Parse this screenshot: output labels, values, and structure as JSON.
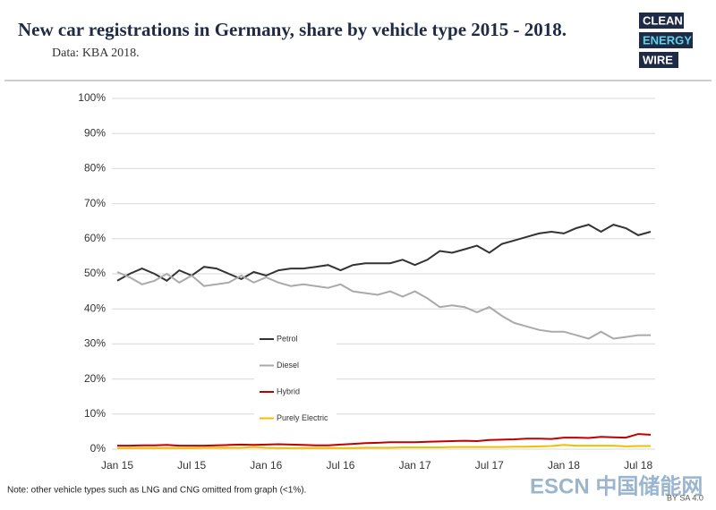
{
  "header": {
    "title": "New car registrations in Germany, share by vehicle type 2015 - 2018.",
    "subtitle": "Data: KBA 2018.",
    "logo": [
      "CLEAN",
      "ENERGY",
      "WIRE"
    ]
  },
  "chart_data": {
    "type": "line",
    "categories": [
      "Jan 15",
      null,
      null,
      null,
      null,
      null,
      "Jul 15",
      null,
      null,
      null,
      null,
      null,
      "Jan 16",
      null,
      null,
      null,
      null,
      null,
      "Jul 16",
      null,
      null,
      null,
      null,
      null,
      "Jan 17",
      null,
      null,
      null,
      null,
      null,
      "Jul 17",
      null,
      null,
      null,
      null,
      null,
      "Jan 18",
      null,
      null,
      null,
      null,
      null,
      "Jul 18",
      null
    ],
    "series": [
      {
        "name": "Petrol",
        "color": "#333333",
        "values": [
          48,
          50,
          51.5,
          50,
          48,
          51,
          49.5,
          52,
          51.5,
          50,
          48.5,
          50.5,
          49.5,
          51,
          51.5,
          51.5,
          52,
          52.5,
          51,
          52.5,
          53,
          53,
          53,
          54,
          52.5,
          54,
          56.5,
          56,
          57,
          58,
          56,
          58.5,
          59.5,
          60.5,
          61.5,
          62,
          61.5,
          63,
          64,
          62,
          64,
          63,
          61,
          62
        ]
      },
      {
        "name": "Diesel",
        "color": "#aaaaaa",
        "values": [
          50.5,
          49,
          47,
          48,
          50,
          47.5,
          49.5,
          46.5,
          47,
          47.5,
          49.5,
          47.5,
          49,
          47.5,
          46.5,
          47,
          46.5,
          46,
          47,
          45,
          44.5,
          44,
          45,
          43.5,
          45,
          43,
          40.5,
          41,
          40.5,
          39,
          40.5,
          38,
          36,
          35,
          34,
          33.5,
          33.5,
          32.5,
          31.5,
          33.5,
          31.5,
          32,
          32.5,
          32.5
        ]
      },
      {
        "name": "Hybrid",
        "color": "#c00000",
        "values": [
          1,
          1,
          1.1,
          1.1,
          1.2,
          1,
          1,
          1,
          1.1,
          1.2,
          1.3,
          1.2,
          1.3,
          1.4,
          1.3,
          1.2,
          1.1,
          1.1,
          1.3,
          1.5,
          1.7,
          1.8,
          2,
          2,
          2,
          2.1,
          2.2,
          2.3,
          2.4,
          2.3,
          2.6,
          2.7,
          2.8,
          3,
          3,
          2.9,
          3.3,
          3.3,
          3.2,
          3.5,
          3.4,
          3.3,
          4.3,
          4.1
        ]
      },
      {
        "name": "Purely Electric",
        "color": "#f0c000",
        "values": [
          0.3,
          0.3,
          0.3,
          0.3,
          0.3,
          0.3,
          0.3,
          0.4,
          0.4,
          0.4,
          0.4,
          0.6,
          0.4,
          0.3,
          0.3,
          0.3,
          0.3,
          0.3,
          0.3,
          0.3,
          0.4,
          0.4,
          0.4,
          0.5,
          0.5,
          0.5,
          0.5,
          0.6,
          0.6,
          0.6,
          0.6,
          0.6,
          0.7,
          0.7,
          0.8,
          0.9,
          1.2,
          1,
          1,
          1,
          1,
          0.8,
          0.9,
          0.9
        ]
      }
    ],
    "ylim": [
      0,
      100
    ],
    "yticks": [
      {
        "value": 0,
        "label": "0%"
      },
      {
        "value": 10,
        "label": "10%"
      },
      {
        "value": 20,
        "label": "20%"
      },
      {
        "value": 30,
        "label": "30%"
      },
      {
        "value": 40,
        "label": "40%"
      },
      {
        "value": 50,
        "label": "50%"
      },
      {
        "value": 60,
        "label": "60%"
      },
      {
        "value": 70,
        "label": "70%"
      },
      {
        "value": 80,
        "label": "80%"
      },
      {
        "value": 90,
        "label": "90%"
      },
      {
        "value": 100,
        "label": "100%"
      }
    ],
    "grid": true
  },
  "footer": {
    "note": "Note: other vehicle types such as LNG and CNG omitted from graph (<1%).",
    "license": "BY SA 4.0",
    "watermark": "ESCN 中国储能网"
  }
}
